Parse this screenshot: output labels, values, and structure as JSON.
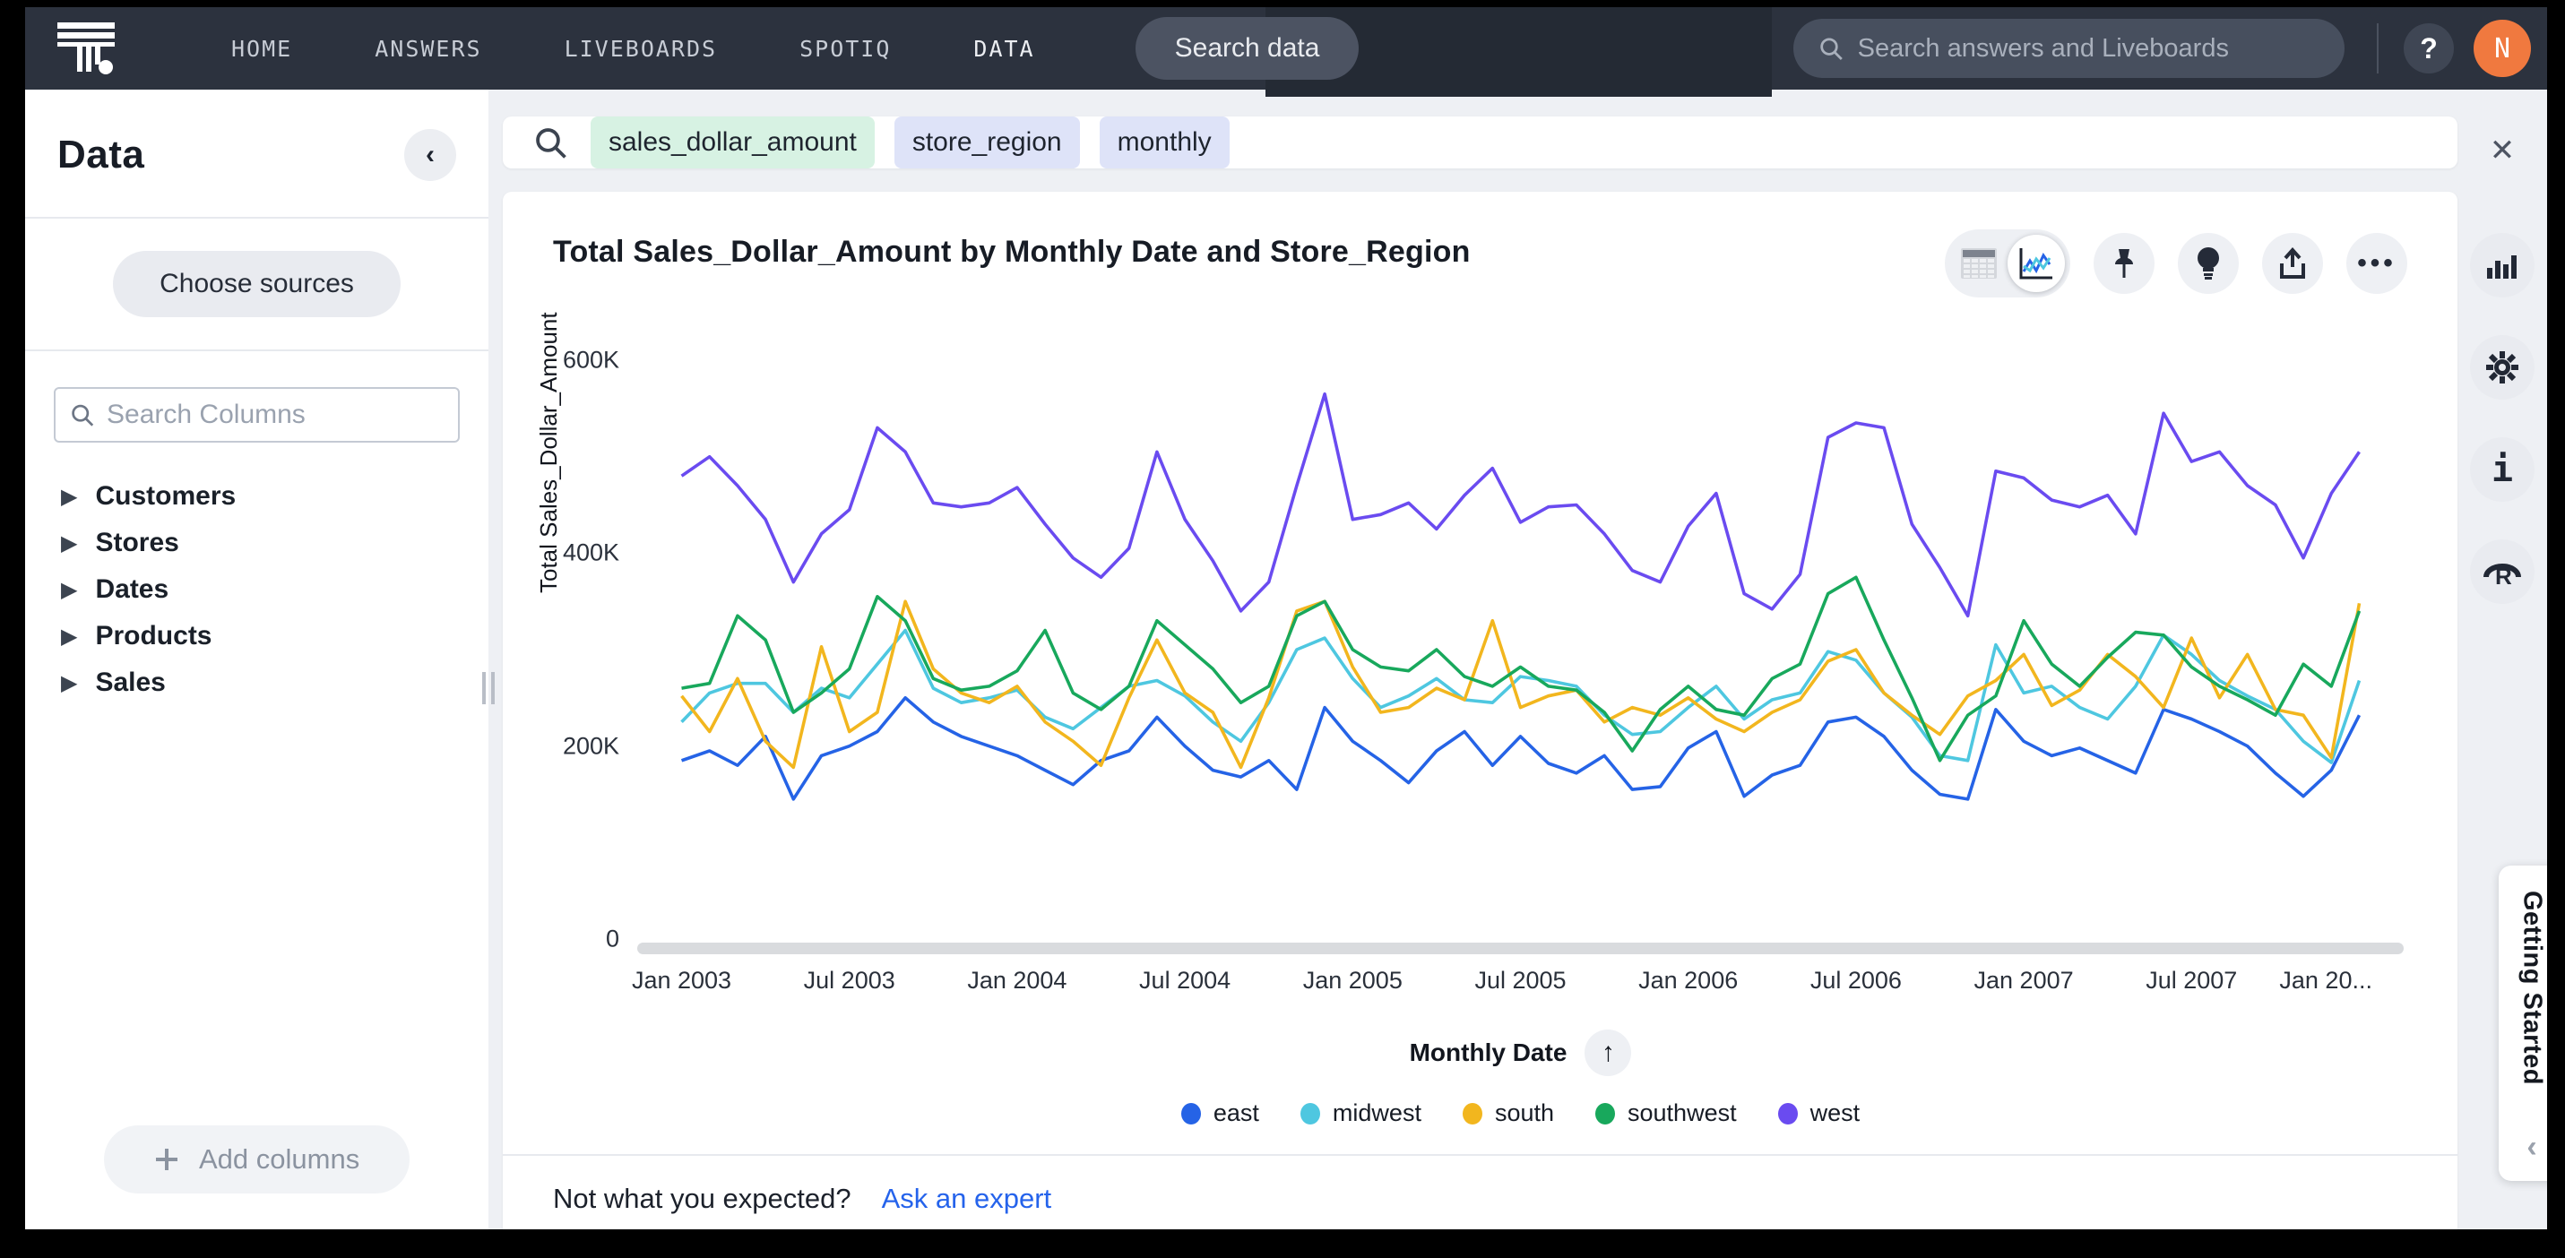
{
  "nav": {
    "items": [
      {
        "label": "HOME",
        "active": false
      },
      {
        "label": "ANSWERS",
        "active": false
      },
      {
        "label": "LIVEBOARDS",
        "active": false
      },
      {
        "label": "SPOTIQ",
        "active": false
      },
      {
        "label": "DATA",
        "active": true
      }
    ],
    "search_data_label": "Search data",
    "global_search_placeholder": "Search answers and Liveboards",
    "help_label": "?",
    "avatar_initial": "N"
  },
  "sidebar": {
    "title": "Data",
    "collapse_glyph": "‹",
    "choose_sources_label": "Choose sources",
    "search_placeholder": "Search Columns",
    "tree": [
      "Customers",
      "Stores",
      "Dates",
      "Products",
      "Sales"
    ],
    "add_columns_label": "Add columns"
  },
  "search_bar": {
    "tokens": [
      {
        "text": "sales_dollar_amount",
        "type": "measure"
      },
      {
        "text": "store_region",
        "type": "attribute"
      },
      {
        "text": "monthly",
        "type": "keyword"
      }
    ],
    "close_glyph": "✕"
  },
  "answer": {
    "title": "Total Sales_Dollar_Amount by Monthly Date and Store_Region",
    "footer_text": "Not what you expected?",
    "footer_link": "Ask an expert"
  },
  "getting_started": {
    "label": "Getting Started",
    "chevron": "‹"
  },
  "chart_data": {
    "type": "line",
    "title": "Total Sales_Dollar_Amount by Monthly Date and Store_Region",
    "xlabel": "Monthly Date",
    "ylabel": "Total Sales_Dollar_Amount",
    "sort_glyph": "↑",
    "x_start": "Jan 2003",
    "x_end": "Jan 2008",
    "x_interval": "monthly",
    "x_tick_labels": [
      "Jan 2003",
      "Jul 2003",
      "Jan 2004",
      "Jul 2004",
      "Jan 2005",
      "Jul 2005",
      "Jan 2006",
      "Jul 2006",
      "Jan 2007",
      "Jul 2007",
      "Jan 20..."
    ],
    "x_tick_every": 6,
    "y_ticks": [
      {
        "label": "600K",
        "value": 600
      },
      {
        "label": "400K",
        "value": 400
      },
      {
        "label": "200K",
        "value": 200
      },
      {
        "label": "0",
        "value": 0
      }
    ],
    "ylim": [
      0,
      600
    ],
    "unit": "K",
    "grid": false,
    "legend_position": "bottom",
    "series": [
      {
        "name": "east",
        "color": "#2563E6",
        "values": [
          185,
          195,
          180,
          210,
          145,
          190,
          200,
          215,
          250,
          225,
          210,
          200,
          190,
          175,
          160,
          185,
          195,
          230,
          200,
          175,
          168,
          185,
          155,
          240,
          205,
          185,
          162,
          195,
          215,
          180,
          210,
          182,
          172,
          190,
          155,
          158,
          198,
          215,
          148,
          170,
          180,
          225,
          230,
          210,
          175,
          150,
          145,
          238,
          205,
          190,
          198,
          185,
          172,
          238,
          228,
          215,
          200,
          172,
          148,
          175,
          232
        ]
      },
      {
        "name": "midwest",
        "color": "#4EC7E0",
        "values": [
          225,
          255,
          265,
          265,
          235,
          260,
          250,
          285,
          320,
          260,
          245,
          250,
          258,
          230,
          218,
          240,
          262,
          268,
          252,
          225,
          205,
          245,
          300,
          312,
          270,
          240,
          252,
          270,
          248,
          245,
          272,
          268,
          262,
          232,
          212,
          215,
          240,
          262,
          228,
          248,
          255,
          298,
          289,
          255,
          230,
          190,
          185,
          305,
          255,
          262,
          240,
          228,
          262,
          315,
          295,
          268,
          252,
          238,
          205,
          183,
          268
        ]
      },
      {
        "name": "south",
        "color": "#F2B61E",
        "values": [
          252,
          215,
          270,
          205,
          178,
          303,
          215,
          235,
          350,
          280,
          255,
          245,
          262,
          225,
          205,
          180,
          250,
          310,
          255,
          235,
          178,
          250,
          340,
          350,
          282,
          235,
          240,
          260,
          248,
          330,
          240,
          252,
          258,
          225,
          240,
          232,
          250,
          228,
          215,
          235,
          248,
          288,
          300,
          255,
          232,
          212,
          252,
          268,
          295,
          242,
          258,
          295,
          272,
          240,
          312,
          250,
          295,
          238,
          232,
          188,
          348
        ]
      },
      {
        "name": "southwest",
        "color": "#18A85C",
        "values": [
          260,
          265,
          335,
          310,
          235,
          255,
          280,
          355,
          330,
          270,
          258,
          262,
          278,
          320,
          255,
          238,
          262,
          330,
          305,
          280,
          245,
          262,
          335,
          350,
          300,
          282,
          278,
          300,
          272,
          262,
          282,
          262,
          258,
          235,
          195,
          238,
          262,
          238,
          232,
          270,
          285,
          358,
          375,
          310,
          250,
          185,
          232,
          252,
          330,
          285,
          262,
          292,
          318,
          315,
          282,
          262,
          248,
          232,
          285,
          262,
          340
        ]
      },
      {
        "name": "west",
        "color": "#6A4BF0",
        "values": [
          480,
          500,
          470,
          435,
          370,
          420,
          445,
          530,
          505,
          452,
          448,
          452,
          468,
          430,
          395,
          375,
          405,
          505,
          435,
          392,
          340,
          370,
          470,
          565,
          435,
          440,
          452,
          425,
          460,
          488,
          432,
          448,
          450,
          420,
          382,
          370,
          428,
          462,
          358,
          342,
          378,
          520,
          535,
          530,
          430,
          385,
          335,
          485,
          478,
          455,
          448,
          460,
          420,
          545,
          495,
          505,
          470,
          450,
          395,
          462,
          505
        ]
      }
    ]
  }
}
